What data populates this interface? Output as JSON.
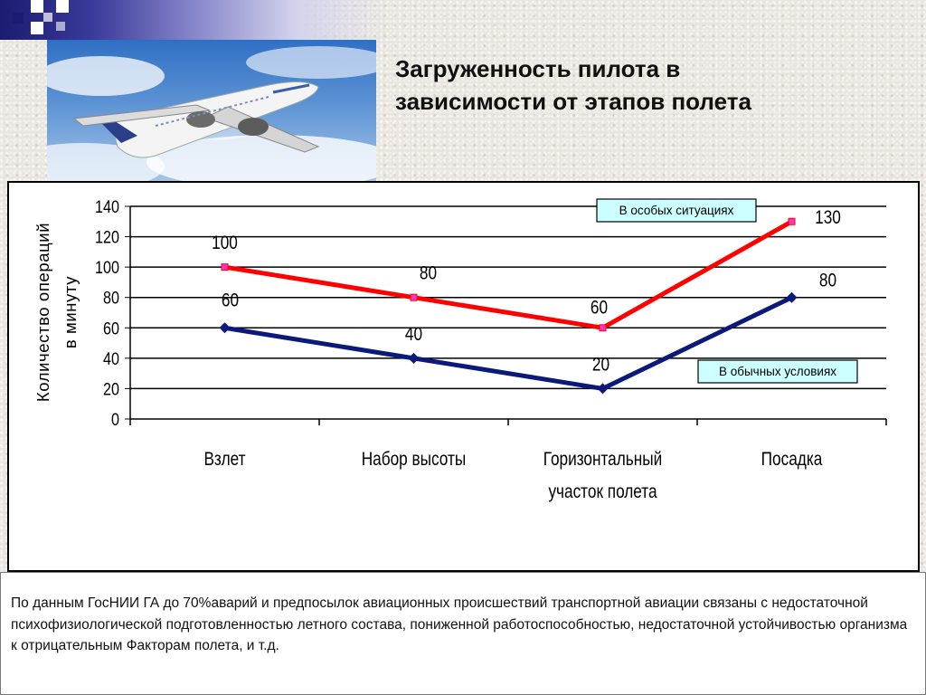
{
  "slide": {
    "title": "Загруженность пилота в\nзависимости от этапов полета",
    "footer_text": "По данным ГосНИИ ГА до 70%аварий и предпосылок авиационных происшествий транспортной авиации связаны с недостаточной психофизиологической подготовленностью летного состава, пониженной работоспособностью, недостаточной устойчивостью организма к отрицательным Факторам полета, и т.д."
  },
  "colors": {
    "deco_dark": "#1c1c72",
    "special_series": "#ff0000",
    "normal_series": "#0b1a7a",
    "callout_fill": "#ccffff",
    "special_marker": "#ff33cc"
  },
  "icons": [
    "airplane-photo"
  ],
  "chart_data": {
    "type": "line",
    "title": "",
    "ylabel_lines": [
      "Количество операций",
      "в минуту"
    ],
    "xlabel": "",
    "ylim": [
      0,
      140
    ],
    "yticks": [
      0,
      20,
      40,
      60,
      80,
      100,
      120,
      140
    ],
    "grid": true,
    "categories": [
      [
        "Взлет"
      ],
      [
        "Набор высоты"
      ],
      [
        "Горизонтальный",
        "участок полета"
      ],
      [
        "Посадка"
      ]
    ],
    "series": [
      {
        "name": "В особых ситуациях",
        "values": [
          100,
          80,
          60,
          130
        ],
        "color": "#ff0000",
        "marker": "square"
      },
      {
        "name": "В обычных  условиях",
        "values": [
          60,
          40,
          20,
          80
        ],
        "color": "#0b1a7a",
        "marker": "diamond"
      }
    ]
  }
}
